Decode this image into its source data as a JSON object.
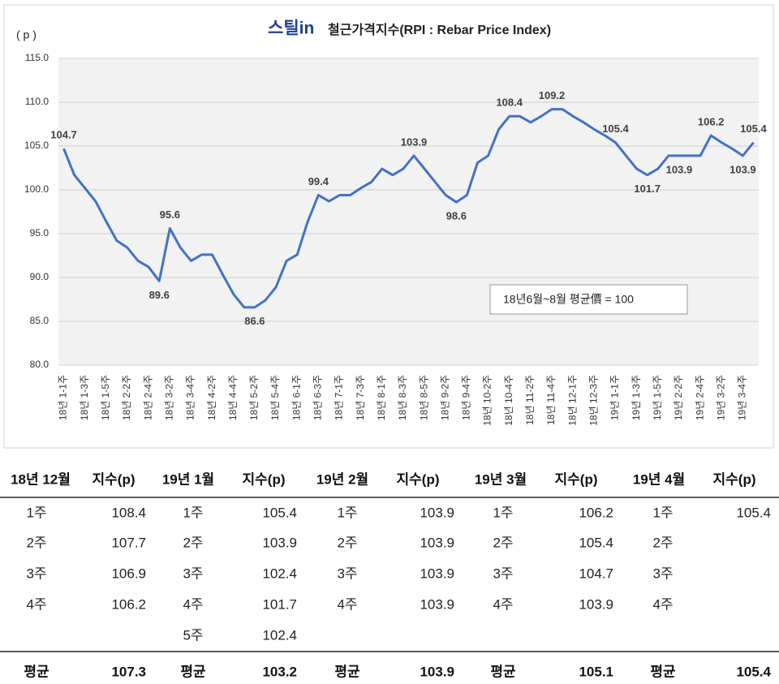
{
  "chart_data": {
    "type": "line",
    "logo": "스틸in",
    "title": "철근가격지수(RPI : Rebar Price Index)",
    "y_label": "( p )",
    "annotation": "18년6월~8월 평균價 = 100",
    "categories": [
      "18년 1-1주",
      null,
      "18년 1-3주",
      null,
      "18년 1-5주",
      null,
      "18년 2-2주",
      null,
      "18년 2-4주",
      null,
      "18년 3-2주",
      null,
      "18년 3-4주",
      null,
      "18년 4-2주",
      null,
      "18년 4-4주",
      null,
      "18년 5-2주",
      null,
      "18년 5-4주",
      null,
      "18년 6-1주",
      null,
      "18년 6-3주",
      null,
      "18년 7-1주",
      null,
      "18년 7-3주",
      null,
      "18년 8-1주",
      null,
      "18년 8-3주",
      null,
      "18년 8-5주",
      null,
      "18년 9-2주",
      null,
      "18년 9-4주",
      null,
      "18년 10-2주",
      null,
      "18년 10-4주",
      null,
      "18년 11-2주",
      null,
      "18년 11-4주",
      null,
      "18년 12-1주",
      null,
      "18년 12-3주",
      null,
      "19년 1-1주",
      null,
      "19년 1-3주",
      null,
      "19년 1-5주",
      null,
      "19년 2-2주",
      null,
      "19년 2-4주",
      null,
      "19년 3-2주",
      null,
      "19년 3-4주",
      null
    ],
    "series": [
      {
        "name": "RPI",
        "color": "#4472c4",
        "values": [
          104.7,
          101.7,
          100.2,
          98.7,
          96.4,
          94.2,
          93.4,
          91.9,
          91.2,
          89.6,
          95.6,
          93.4,
          91.9,
          92.6,
          92.6,
          90.3,
          88.1,
          86.6,
          86.6,
          87.4,
          88.9,
          91.9,
          92.6,
          96.4,
          99.4,
          98.7,
          99.4,
          99.4,
          100.2,
          100.9,
          102.4,
          101.7,
          102.4,
          103.9,
          102.4,
          100.9,
          99.4,
          98.6,
          99.4,
          103.1,
          103.9,
          106.9,
          108.4,
          108.4,
          107.7,
          108.4,
          109.2,
          109.2,
          108.4,
          107.7,
          106.9,
          106.2,
          105.4,
          103.9,
          102.4,
          101.7,
          102.4,
          103.9,
          103.9,
          103.9,
          103.9,
          106.2,
          105.4,
          104.7,
          103.9,
          105.4
        ],
        "value_labels": [
          "104.7",
          null,
          null,
          null,
          null,
          null,
          null,
          null,
          null,
          "89.6",
          "95.6",
          null,
          null,
          null,
          null,
          null,
          null,
          null,
          "86.6",
          null,
          null,
          null,
          null,
          null,
          "99.4",
          null,
          null,
          null,
          null,
          null,
          null,
          null,
          null,
          "103.9",
          null,
          null,
          null,
          "98.6",
          null,
          null,
          null,
          null,
          "108.4",
          null,
          null,
          null,
          "109.2",
          null,
          null,
          null,
          null,
          null,
          "105.4",
          null,
          null,
          "101.7",
          null,
          null,
          "103.9",
          null,
          null,
          "106.2",
          null,
          null,
          "103.9",
          "105.4"
        ]
      }
    ],
    "ylim": [
      80,
      115
    ],
    "yticks": [
      {
        "value": 80,
        "label": "80.0"
      },
      {
        "value": 85,
        "label": "85.0"
      },
      {
        "value": 90,
        "label": "90.0"
      },
      {
        "value": 95,
        "label": "95.0"
      },
      {
        "value": 100,
        "label": "100.0"
      },
      {
        "value": 105,
        "label": "105.0"
      },
      {
        "value": 110,
        "label": "110.0"
      },
      {
        "value": 115,
        "label": "115.0"
      }
    ],
    "grid": true
  },
  "table": {
    "months": [
      {
        "header": "18년 12월",
        "index_header": "지수(p)",
        "rows": [
          [
            "1주",
            108.4
          ],
          [
            "2주",
            107.7
          ],
          [
            "3주",
            106.9
          ],
          [
            "4주",
            106.2
          ]
        ],
        "avg_label": "평균",
        "avg": 107.3
      },
      {
        "header": "19년 1월",
        "index_header": "지수(p)",
        "rows": [
          [
            "1주",
            105.4
          ],
          [
            "2주",
            103.9
          ],
          [
            "3주",
            102.4
          ],
          [
            "4주",
            101.7
          ],
          [
            "5주",
            102.4
          ]
        ],
        "avg_label": "평균",
        "avg": 103.2
      },
      {
        "header": "19년 2월",
        "index_header": "지수(p)",
        "rows": [
          [
            "1주",
            103.9
          ],
          [
            "2주",
            103.9
          ],
          [
            "3주",
            103.9
          ],
          [
            "4주",
            103.9
          ]
        ],
        "avg_label": "평균",
        "avg": 103.9
      },
      {
        "header": "19년 3월",
        "index_header": "지수(p)",
        "rows": [
          [
            "1주",
            106.2
          ],
          [
            "2주",
            105.4
          ],
          [
            "3주",
            104.7
          ],
          [
            "4주",
            103.9
          ]
        ],
        "avg_label": "평균",
        "avg": 105.1
      },
      {
        "header": "19년 4월",
        "index_header": "지수(p)",
        "rows": [
          [
            "1주",
            105.4
          ],
          [
            "2주",
            null
          ],
          [
            "3주",
            null
          ],
          [
            "4주",
            null
          ]
        ],
        "avg_label": "평균",
        "avg": 105.4
      }
    ]
  }
}
